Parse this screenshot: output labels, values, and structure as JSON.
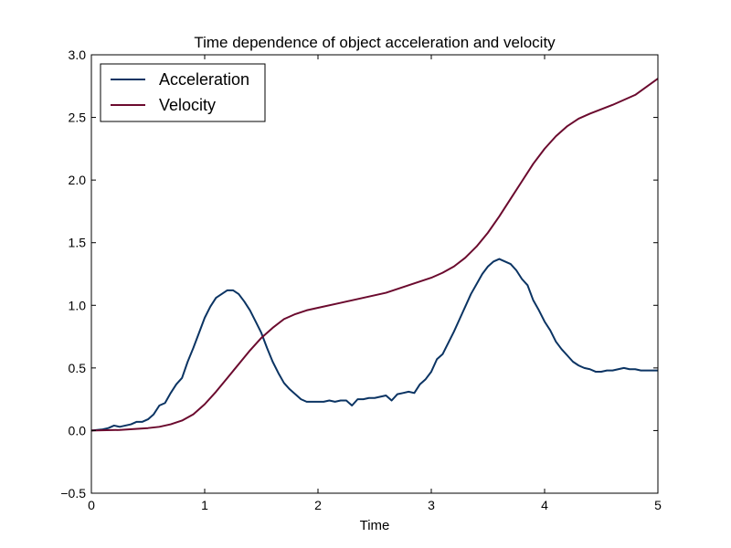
{
  "chart_data": {
    "type": "line",
    "title": "Time dependence of object acceleration and velocity",
    "xlabel": "Time",
    "ylabel": "",
    "xlim": [
      0,
      5
    ],
    "ylim": [
      -0.5,
      3.0
    ],
    "xticks": [
      0,
      1,
      2,
      3,
      4,
      5
    ],
    "xtick_labels": [
      "0",
      "1",
      "2",
      "3",
      "4",
      "5"
    ],
    "yticks": [
      -0.5,
      0.0,
      0.5,
      1.0,
      1.5,
      2.0,
      2.5,
      3.0
    ],
    "ytick_labels": [
      "−0.5",
      "0.0",
      "0.5",
      "1.0",
      "1.5",
      "2.0",
      "2.5",
      "3.0"
    ],
    "grid": false,
    "legend_position": "top-left",
    "series": [
      {
        "name": "Acceleration",
        "color": "#0b3463",
        "x": [
          0,
          0.1,
          0.15,
          0.2,
          0.25,
          0.3,
          0.35,
          0.4,
          0.45,
          0.5,
          0.55,
          0.6,
          0.65,
          0.7,
          0.75,
          0.8,
          0.85,
          0.9,
          0.95,
          1.0,
          1.05,
          1.1,
          1.15,
          1.2,
          1.25,
          1.3,
          1.35,
          1.4,
          1.45,
          1.5,
          1.55,
          1.6,
          1.65,
          1.7,
          1.75,
          1.8,
          1.85,
          1.9,
          1.95,
          2.0,
          2.05,
          2.1,
          2.15,
          2.2,
          2.25,
          2.3,
          2.35,
          2.4,
          2.45,
          2.5,
          2.55,
          2.6,
          2.65,
          2.7,
          2.75,
          2.8,
          2.85,
          2.9,
          2.95,
          3.0,
          3.05,
          3.1,
          3.15,
          3.2,
          3.25,
          3.3,
          3.35,
          3.4,
          3.45,
          3.5,
          3.55,
          3.6,
          3.65,
          3.7,
          3.75,
          3.8,
          3.85,
          3.9,
          3.95,
          4.0,
          4.05,
          4.1,
          4.15,
          4.2,
          4.25,
          4.3,
          4.35,
          4.4,
          4.45,
          4.5,
          4.55,
          4.6,
          4.65,
          4.7,
          4.75,
          4.8,
          4.85,
          4.9,
          4.95,
          5.0
        ],
        "y": [
          0.0,
          0.01,
          0.02,
          0.04,
          0.03,
          0.04,
          0.05,
          0.07,
          0.07,
          0.09,
          0.13,
          0.2,
          0.22,
          0.3,
          0.37,
          0.42,
          0.55,
          0.66,
          0.78,
          0.9,
          0.99,
          1.06,
          1.09,
          1.12,
          1.12,
          1.09,
          1.03,
          0.96,
          0.87,
          0.78,
          0.66,
          0.55,
          0.46,
          0.38,
          0.33,
          0.29,
          0.25,
          0.23,
          0.23,
          0.23,
          0.23,
          0.24,
          0.23,
          0.24,
          0.24,
          0.2,
          0.25,
          0.25,
          0.26,
          0.26,
          0.27,
          0.28,
          0.24,
          0.29,
          0.3,
          0.31,
          0.3,
          0.37,
          0.41,
          0.47,
          0.57,
          0.61,
          0.7,
          0.79,
          0.89,
          0.99,
          1.09,
          1.17,
          1.25,
          1.31,
          1.35,
          1.37,
          1.35,
          1.33,
          1.28,
          1.21,
          1.16,
          1.04,
          0.96,
          0.87,
          0.8,
          0.71,
          0.65,
          0.6,
          0.55,
          0.52,
          0.5,
          0.49,
          0.47,
          0.47,
          0.48,
          0.48,
          0.49,
          0.5,
          0.49,
          0.49,
          0.48,
          0.48,
          0.48,
          0.48
        ]
      },
      {
        "name": "Velocity",
        "color": "#6b0a2e",
        "x": [
          0,
          0.25,
          0.5,
          0.6,
          0.7,
          0.8,
          0.9,
          1.0,
          1.1,
          1.2,
          1.3,
          1.4,
          1.5,
          1.6,
          1.7,
          1.8,
          1.9,
          2.0,
          2.2,
          2.4,
          2.6,
          2.8,
          3.0,
          3.1,
          3.2,
          3.3,
          3.4,
          3.5,
          3.6,
          3.7,
          3.8,
          3.9,
          4.0,
          4.1,
          4.2,
          4.3,
          4.4,
          4.6,
          4.8,
          5.0
        ],
        "y": [
          0.0,
          0.005,
          0.02,
          0.03,
          0.05,
          0.08,
          0.13,
          0.21,
          0.31,
          0.42,
          0.53,
          0.64,
          0.74,
          0.82,
          0.89,
          0.93,
          0.96,
          0.98,
          1.02,
          1.06,
          1.1,
          1.16,
          1.22,
          1.26,
          1.31,
          1.38,
          1.47,
          1.58,
          1.71,
          1.85,
          1.99,
          2.13,
          2.25,
          2.35,
          2.43,
          2.49,
          2.53,
          2.6,
          2.68,
          2.81
        ]
      }
    ]
  }
}
